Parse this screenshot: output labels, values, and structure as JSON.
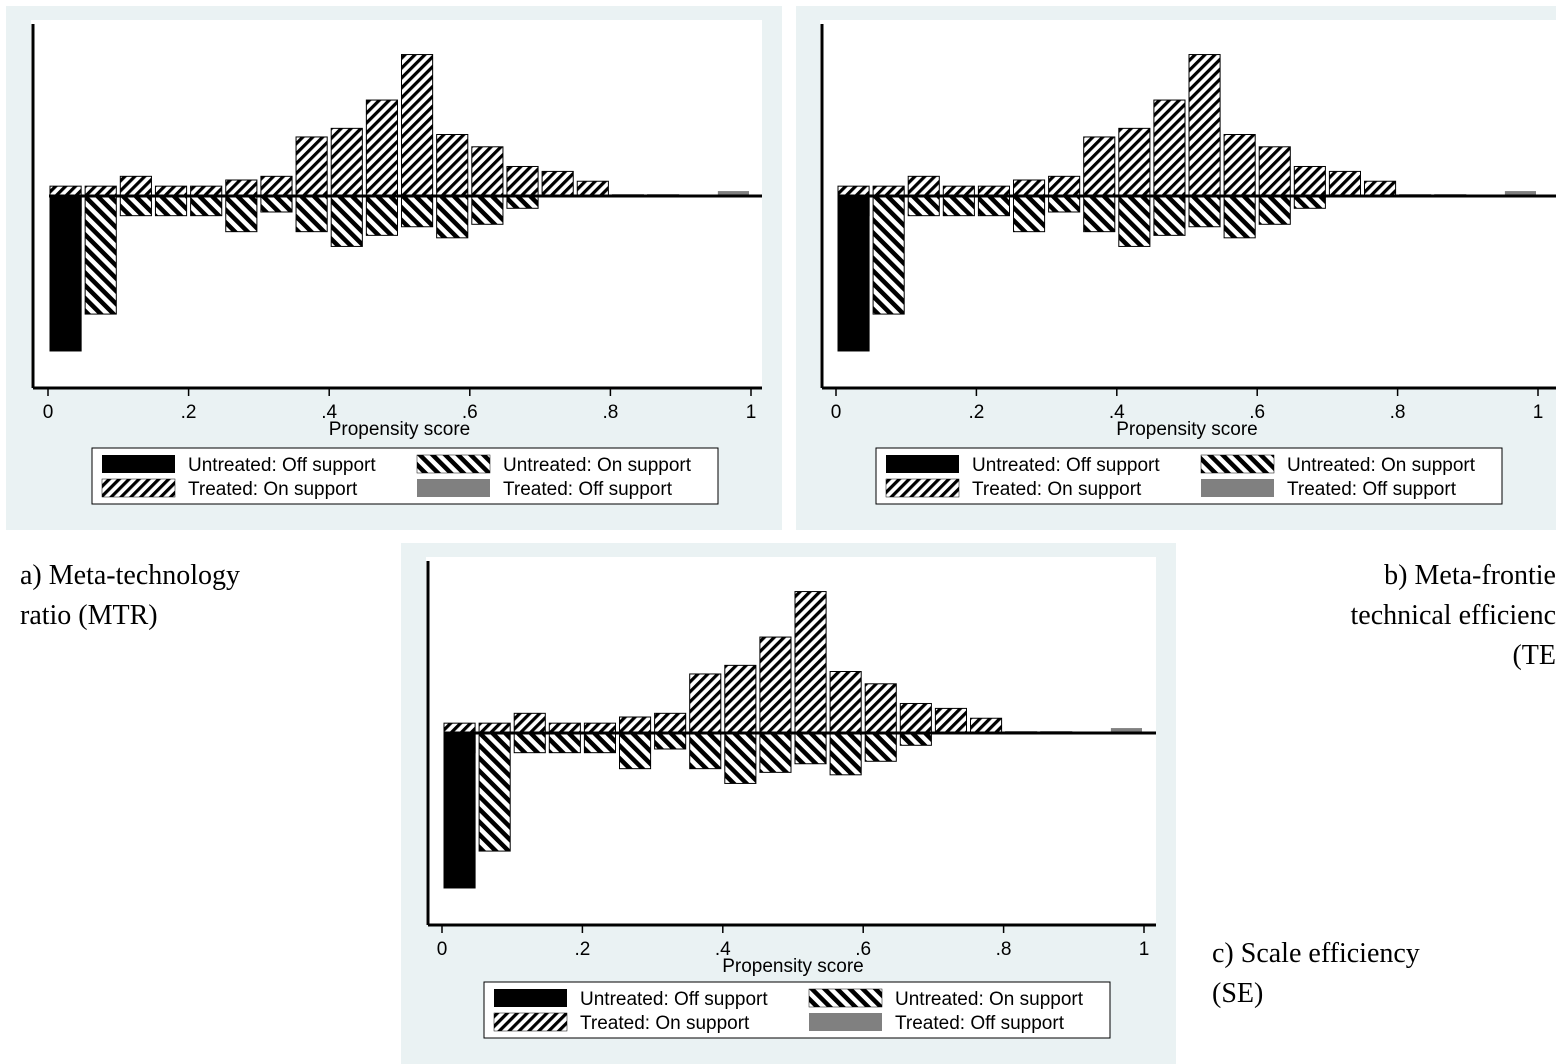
{
  "chart_data": [
    {
      "type": "bar",
      "panel": "a",
      "xlabel": "Propensity score",
      "xticks": [
        "0",
        ".2",
        ".4",
        ".6",
        ".8",
        "1"
      ],
      "xlim": [
        0,
        1
      ],
      "bin_width": 0.05,
      "series": [
        {
          "name": "Untreated: Off support",
          "side": "below",
          "pattern": "solid-black",
          "bins": [
            0.0
          ],
          "values": [
            2.52
          ]
        },
        {
          "name": "Untreated: On support",
          "side": "below",
          "pattern": "hatch-back",
          "bins": [
            0.0,
            0.05,
            0.1,
            0.15,
            0.2,
            0.25,
            0.3,
            0.35,
            0.4,
            0.45,
            0.5,
            0.55,
            0.6,
            0.65
          ],
          "values": [
            0.32,
            1.92,
            0.32,
            0.32,
            0.32,
            0.58,
            0.26,
            0.58,
            0.82,
            0.64,
            0.5,
            0.68,
            0.46,
            0.2
          ]
        },
        {
          "name": "Treated: On support",
          "side": "above",
          "pattern": "hatch-forward",
          "bins": [
            0.0,
            0.05,
            0.1,
            0.15,
            0.2,
            0.25,
            0.3,
            0.35,
            0.4,
            0.45,
            0.5,
            0.55,
            0.6,
            0.65,
            0.7,
            0.75,
            0.8,
            0.85
          ],
          "values": [
            0.16,
            0.16,
            0.32,
            0.16,
            0.16,
            0.26,
            0.32,
            0.96,
            1.1,
            1.56,
            2.3,
            1.0,
            0.8,
            0.48,
            0.4,
            0.24,
            0.01,
            0.01
          ]
        },
        {
          "name": "Treated: Off support",
          "side": "above",
          "pattern": "solid-gray",
          "bins": [
            0.95
          ],
          "values": [
            0.08
          ]
        }
      ]
    },
    {
      "type": "bar",
      "panel": "b",
      "xlabel": "Propensity score",
      "xticks": [
        "0",
        ".2",
        ".4",
        ".6",
        ".8",
        "1"
      ],
      "xlim": [
        0,
        1
      ],
      "bin_width": 0.05,
      "series": [
        {
          "name": "Untreated: Off support",
          "side": "below",
          "pattern": "solid-black",
          "bins": [
            0.0
          ],
          "values": [
            2.52
          ]
        },
        {
          "name": "Untreated: On support",
          "side": "below",
          "pattern": "hatch-back",
          "bins": [
            0.0,
            0.05,
            0.1,
            0.15,
            0.2,
            0.25,
            0.3,
            0.35,
            0.4,
            0.45,
            0.5,
            0.55,
            0.6,
            0.65
          ],
          "values": [
            0.32,
            1.92,
            0.32,
            0.32,
            0.32,
            0.58,
            0.26,
            0.58,
            0.82,
            0.64,
            0.5,
            0.68,
            0.46,
            0.2
          ]
        },
        {
          "name": "Treated: On support",
          "side": "above",
          "pattern": "hatch-forward",
          "bins": [
            0.0,
            0.05,
            0.1,
            0.15,
            0.2,
            0.25,
            0.3,
            0.35,
            0.4,
            0.45,
            0.5,
            0.55,
            0.6,
            0.65,
            0.7,
            0.75,
            0.8,
            0.85
          ],
          "values": [
            0.16,
            0.16,
            0.32,
            0.16,
            0.16,
            0.26,
            0.32,
            0.96,
            1.1,
            1.56,
            2.3,
            1.0,
            0.8,
            0.48,
            0.4,
            0.24,
            0.01,
            0.01
          ]
        },
        {
          "name": "Treated: Off support",
          "side": "above",
          "pattern": "solid-gray",
          "bins": [
            0.95
          ],
          "values": [
            0.08
          ]
        }
      ]
    },
    {
      "type": "bar",
      "panel": "c",
      "xlabel": "Propensity score",
      "xticks": [
        "0",
        ".2",
        ".4",
        ".6",
        ".8",
        "1"
      ],
      "xlim": [
        0,
        1
      ],
      "bin_width": 0.05,
      "series": [
        {
          "name": "Untreated: Off support",
          "side": "below",
          "pattern": "solid-black",
          "bins": [
            0.0
          ],
          "values": [
            2.52
          ]
        },
        {
          "name": "Untreated: On support",
          "side": "below",
          "pattern": "hatch-back",
          "bins": [
            0.0,
            0.05,
            0.1,
            0.15,
            0.2,
            0.25,
            0.3,
            0.35,
            0.4,
            0.45,
            0.5,
            0.55,
            0.6,
            0.65
          ],
          "values": [
            0.32,
            1.92,
            0.32,
            0.32,
            0.32,
            0.58,
            0.26,
            0.58,
            0.82,
            0.64,
            0.5,
            0.68,
            0.46,
            0.2
          ]
        },
        {
          "name": "Treated: On support",
          "side": "above",
          "pattern": "hatch-forward",
          "bins": [
            0.0,
            0.05,
            0.1,
            0.15,
            0.2,
            0.25,
            0.3,
            0.35,
            0.4,
            0.45,
            0.5,
            0.55,
            0.6,
            0.65,
            0.7,
            0.75,
            0.8,
            0.85
          ],
          "values": [
            0.16,
            0.16,
            0.32,
            0.16,
            0.16,
            0.26,
            0.32,
            0.96,
            1.1,
            1.56,
            2.3,
            1.0,
            0.8,
            0.48,
            0.4,
            0.24,
            0.01,
            0.01
          ]
        },
        {
          "name": "Treated: Off support",
          "side": "above",
          "pattern": "solid-gray",
          "bins": [
            0.95
          ],
          "values": [
            0.08
          ]
        }
      ]
    }
  ],
  "captions": {
    "a": [
      "a) Meta-technology",
      "ratio (MTR)"
    ],
    "b": [
      "b) Meta-frontie",
      "technical efficienc",
      "(TE"
    ],
    "c": [
      "c) Scale efficiency",
      "(SE)"
    ]
  },
  "colors": {
    "panel_background": "#eaf2f3",
    "plot_background": "#ffffff",
    "off_support_untreated": "#000000",
    "off_support_treated": "#808080"
  }
}
